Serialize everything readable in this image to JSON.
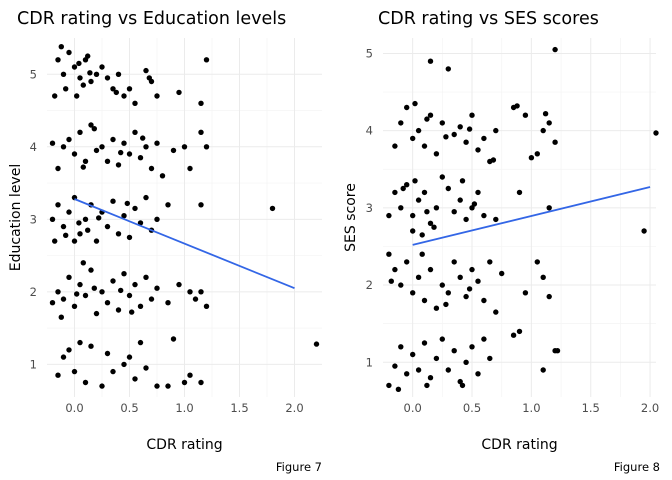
{
  "chart_data": [
    {
      "type": "scatter",
      "title": "CDR rating vs Education levels",
      "xlabel": "CDR rating",
      "ylabel": "Education level",
      "caption": "Figure 7",
      "xlim": [
        -0.25,
        2.25
      ],
      "ylim": [
        0.55,
        5.5
      ],
      "xticks": [
        0.0,
        0.5,
        1.0,
        1.5,
        2.0
      ],
      "xtick_labels": [
        "0.0",
        "0.5",
        "1.0",
        "1.5",
        "2.0"
      ],
      "yticks": [
        1,
        2,
        3,
        4,
        5
      ],
      "ytick_labels": [
        "1",
        "2",
        "3",
        "4",
        "5"
      ],
      "grid": true,
      "fit_line": {
        "x": [
          0.0,
          2.0
        ],
        "y": [
          3.28,
          2.05
        ],
        "color": "#3366e6"
      },
      "points": [
        [
          -0.15,
          5.2
        ],
        [
          -0.1,
          5.0
        ],
        [
          -0.05,
          5.3
        ],
        [
          0.0,
          5.1
        ],
        [
          0.05,
          4.95
        ],
        [
          0.1,
          5.2
        ],
        [
          0.12,
          5.25
        ],
        [
          0.15,
          4.9
        ],
        [
          -0.08,
          4.8
        ],
        [
          0.02,
          4.7
        ],
        [
          0.08,
          4.85
        ],
        [
          0.2,
          5.0
        ],
        [
          0.25,
          5.1
        ],
        [
          -0.12,
          5.38
        ],
        [
          0.04,
          5.15
        ],
        [
          0.3,
          4.95
        ],
        [
          0.35,
          4.8
        ],
        [
          0.4,
          5.0
        ],
        [
          0.45,
          4.7
        ],
        [
          0.5,
          4.8
        ],
        [
          0.55,
          4.6
        ],
        [
          0.65,
          5.05
        ],
        [
          0.7,
          4.9
        ],
        [
          0.75,
          4.7
        ],
        [
          0.95,
          4.75
        ],
        [
          1.15,
          4.6
        ],
        [
          1.2,
          5.2
        ],
        [
          -0.18,
          4.7
        ],
        [
          0.38,
          4.75
        ],
        [
          0.68,
          4.95
        ],
        [
          0.14,
          5.02
        ],
        [
          -0.1,
          4.0
        ],
        [
          -0.05,
          4.1
        ],
        [
          0.0,
          3.9
        ],
        [
          0.05,
          4.2
        ],
        [
          0.1,
          3.8
        ],
        [
          0.15,
          4.3
        ],
        [
          -0.15,
          3.7
        ],
        [
          0.2,
          3.95
        ],
        [
          0.25,
          4.0
        ],
        [
          0.3,
          3.8
        ],
        [
          0.35,
          4.1
        ],
        [
          0.4,
          3.75
        ],
        [
          0.45,
          4.05
        ],
        [
          0.5,
          3.9
        ],
        [
          0.55,
          4.2
        ],
        [
          0.6,
          3.85
        ],
        [
          0.65,
          4.0
        ],
        [
          0.7,
          3.7
        ],
        [
          0.75,
          4.05
        ],
        [
          0.8,
          3.6
        ],
        [
          0.9,
          3.95
        ],
        [
          1.0,
          4.0
        ],
        [
          1.05,
          3.7
        ],
        [
          1.15,
          4.2
        ],
        [
          1.2,
          4.0
        ],
        [
          -0.2,
          4.05
        ],
        [
          0.08,
          3.72
        ],
        [
          0.42,
          3.92
        ],
        [
          0.62,
          4.12
        ],
        [
          0.18,
          4.25
        ],
        [
          -0.2,
          3.0
        ],
        [
          -0.15,
          3.2
        ],
        [
          -0.1,
          2.9
        ],
        [
          -0.05,
          3.1
        ],
        [
          0.0,
          3.3
        ],
        [
          0.05,
          2.8
        ],
        [
          0.1,
          3.0
        ],
        [
          0.15,
          3.2
        ],
        [
          0.2,
          2.7
        ],
        [
          0.25,
          3.1
        ],
        [
          0.3,
          2.9
        ],
        [
          0.35,
          3.25
        ],
        [
          0.4,
          2.8
        ],
        [
          0.45,
          3.05
        ],
        [
          0.5,
          2.75
        ],
        [
          0.55,
          3.15
        ],
        [
          0.6,
          2.95
        ],
        [
          0.65,
          3.3
        ],
        [
          0.7,
          2.85
        ],
        [
          0.75,
          3.0
        ],
        [
          0.85,
          3.2
        ],
        [
          1.15,
          3.2
        ],
        [
          1.8,
          3.15
        ],
        [
          -0.18,
          2.7
        ],
        [
          0.0,
          2.7
        ],
        [
          0.12,
          2.85
        ],
        [
          0.22,
          3.02
        ],
        [
          0.48,
          3.22
        ],
        [
          -0.08,
          2.78
        ],
        [
          0.04,
          2.95
        ],
        [
          -0.15,
          2.0
        ],
        [
          -0.1,
          1.9
        ],
        [
          -0.05,
          2.2
        ],
        [
          0.0,
          1.8
        ],
        [
          0.05,
          2.1
        ],
        [
          0.1,
          1.95
        ],
        [
          0.15,
          2.3
        ],
        [
          0.2,
          1.7
        ],
        [
          0.25,
          2.0
        ],
        [
          0.3,
          1.85
        ],
        [
          0.35,
          2.15
        ],
        [
          0.4,
          1.75
        ],
        [
          0.45,
          2.25
        ],
        [
          0.5,
          1.95
        ],
        [
          0.55,
          2.1
        ],
        [
          0.6,
          1.8
        ],
        [
          0.65,
          2.2
        ],
        [
          0.7,
          1.9
        ],
        [
          0.75,
          2.05
        ],
        [
          0.85,
          1.85
        ],
        [
          0.95,
          2.1
        ],
        [
          1.05,
          2.0
        ],
        [
          1.1,
          1.9
        ],
        [
          1.15,
          2.0
        ],
        [
          1.2,
          1.8
        ],
        [
          -0.2,
          1.85
        ],
        [
          -0.12,
          1.65
        ],
        [
          0.08,
          2.4
        ],
        [
          0.18,
          2.05
        ],
        [
          0.42,
          2.02
        ],
        [
          0.52,
          1.72
        ],
        [
          0.02,
          1.97
        ],
        [
          -0.1,
          1.1
        ],
        [
          -0.05,
          1.2
        ],
        [
          0.0,
          0.9
        ],
        [
          0.05,
          1.3
        ],
        [
          0.1,
          0.75
        ],
        [
          0.15,
          1.25
        ],
        [
          0.3,
          1.15
        ],
        [
          0.35,
          0.9
        ],
        [
          0.45,
          1.0
        ],
        [
          0.5,
          1.1
        ],
        [
          0.55,
          0.8
        ],
        [
          0.6,
          1.3
        ],
        [
          0.75,
          0.7
        ],
        [
          0.85,
          0.7
        ],
        [
          0.9,
          1.35
        ],
        [
          1.0,
          0.75
        ],
        [
          1.05,
          0.85
        ],
        [
          1.15,
          0.75
        ],
        [
          2.2,
          1.28
        ],
        [
          -0.15,
          0.85
        ],
        [
          0.25,
          0.7
        ],
        [
          0.65,
          0.95
        ]
      ]
    },
    {
      "type": "scatter",
      "title": "CDR rating vs SES scores",
      "xlabel": "CDR rating",
      "ylabel": "SES score",
      "caption": "Figure 8",
      "xlim": [
        -0.25,
        2.05
      ],
      "ylim": [
        0.55,
        5.2
      ],
      "xticks": [
        0.0,
        0.5,
        1.0,
        1.5,
        2.0
      ],
      "xtick_labels": [
        "0.0",
        "0.5",
        "1.0",
        "1.5",
        "2.0"
      ],
      "yticks": [
        1,
        2,
        3,
        4,
        5
      ],
      "ytick_labels": [
        "1",
        "2",
        "3",
        "4",
        "5"
      ],
      "grid": true,
      "fit_line": {
        "x": [
          0.0,
          2.0
        ],
        "y": [
          2.52,
          3.27
        ],
        "color": "#3366e6"
      },
      "points": [
        [
          0.15,
          4.9
        ],
        [
          0.3,
          4.8
        ],
        [
          1.2,
          5.05
        ],
        [
          2.05,
          3.97
        ],
        [
          1.95,
          2.7
        ],
        [
          -0.1,
          4.1
        ],
        [
          -0.05,
          4.3
        ],
        [
          0.0,
          3.9
        ],
        [
          0.05,
          4.0
        ],
        [
          0.1,
          3.8
        ],
        [
          0.15,
          4.2
        ],
        [
          0.2,
          3.7
        ],
        [
          0.25,
          4.1
        ],
        [
          0.35,
          3.95
        ],
        [
          0.4,
          4.05
        ],
        [
          0.45,
          3.85
        ],
        [
          0.5,
          4.2
        ],
        [
          0.55,
          3.75
        ],
        [
          0.6,
          3.9
        ],
        [
          0.65,
          3.6
        ],
        [
          0.7,
          4.0
        ],
        [
          0.85,
          4.3
        ],
        [
          0.95,
          4.2
        ],
        [
          1.0,
          3.65
        ],
        [
          1.05,
          3.7
        ],
        [
          1.1,
          4.0
        ],
        [
          1.15,
          4.1
        ],
        [
          1.2,
          3.85
        ],
        [
          -0.15,
          3.8
        ],
        [
          0.02,
          4.35
        ],
        [
          0.12,
          4.15
        ],
        [
          0.28,
          3.92
        ],
        [
          0.48,
          4.02
        ],
        [
          0.68,
          3.62
        ],
        [
          0.88,
          4.32
        ],
        [
          1.12,
          4.22
        ],
        [
          -0.15,
          3.2
        ],
        [
          -0.1,
          3.0
        ],
        [
          -0.05,
          3.3
        ],
        [
          0.0,
          2.9
        ],
        [
          0.05,
          3.1
        ],
        [
          0.1,
          3.2
        ],
        [
          0.15,
          2.8
        ],
        [
          0.2,
          3.0
        ],
        [
          0.3,
          3.25
        ],
        [
          0.35,
          2.95
        ],
        [
          0.4,
          3.1
        ],
        [
          0.45,
          2.85
        ],
        [
          0.5,
          3.0
        ],
        [
          0.55,
          3.2
        ],
        [
          0.6,
          2.9
        ],
        [
          0.7,
          2.85
        ],
        [
          0.9,
          3.2
        ],
        [
          1.15,
          3.0
        ],
        [
          -0.2,
          2.9
        ],
        [
          0.0,
          2.7
        ],
        [
          0.08,
          2.65
        ],
        [
          0.18,
          2.75
        ],
        [
          0.25,
          3.4
        ],
        [
          0.42,
          3.35
        ],
        [
          0.52,
          3.05
        ],
        [
          -0.08,
          3.25
        ],
        [
          0.02,
          3.35
        ],
        [
          0.12,
          2.95
        ],
        [
          -0.2,
          2.4
        ],
        [
          -0.15,
          2.2
        ],
        [
          -0.1,
          2.0
        ],
        [
          -0.05,
          2.3
        ],
        [
          0.0,
          1.9
        ],
        [
          0.05,
          2.1
        ],
        [
          0.1,
          1.8
        ],
        [
          0.15,
          2.2
        ],
        [
          0.2,
          1.7
        ],
        [
          0.25,
          2.0
        ],
        [
          0.3,
          1.9
        ],
        [
          0.35,
          2.3
        ],
        [
          0.4,
          2.1
        ],
        [
          0.45,
          1.85
        ],
        [
          0.5,
          2.2
        ],
        [
          0.55,
          2.05
        ],
        [
          0.6,
          1.8
        ],
        [
          0.65,
          2.3
        ],
        [
          0.7,
          1.65
        ],
        [
          0.75,
          2.15
        ],
        [
          0.95,
          1.9
        ],
        [
          1.05,
          2.3
        ],
        [
          1.1,
          2.1
        ],
        [
          1.15,
          1.85
        ],
        [
          -0.18,
          2.05
        ],
        [
          0.08,
          2.4
        ],
        [
          0.28,
          1.75
        ],
        [
          0.48,
          1.95
        ],
        [
          -0.15,
          0.95
        ],
        [
          -0.1,
          1.2
        ],
        [
          -0.05,
          0.85
        ],
        [
          0.0,
          1.1
        ],
        [
          0.05,
          0.9
        ],
        [
          0.1,
          1.25
        ],
        [
          0.15,
          0.8
        ],
        [
          0.2,
          1.05
        ],
        [
          0.25,
          1.3
        ],
        [
          0.3,
          0.9
        ],
        [
          0.35,
          1.15
        ],
        [
          0.4,
          0.75
        ],
        [
          0.45,
          1.0
        ],
        [
          0.5,
          1.2
        ],
        [
          0.55,
          0.85
        ],
        [
          0.6,
          1.3
        ],
        [
          0.85,
          1.35
        ],
        [
          0.9,
          1.4
        ],
        [
          1.1,
          0.9
        ],
        [
          1.2,
          1.15
        ],
        [
          -0.2,
          0.7
        ],
        [
          -0.12,
          0.65
        ],
        [
          0.12,
          0.7
        ],
        [
          0.42,
          0.7
        ],
        [
          0.65,
          1.05
        ],
        [
          1.22,
          1.15
        ]
      ]
    }
  ]
}
